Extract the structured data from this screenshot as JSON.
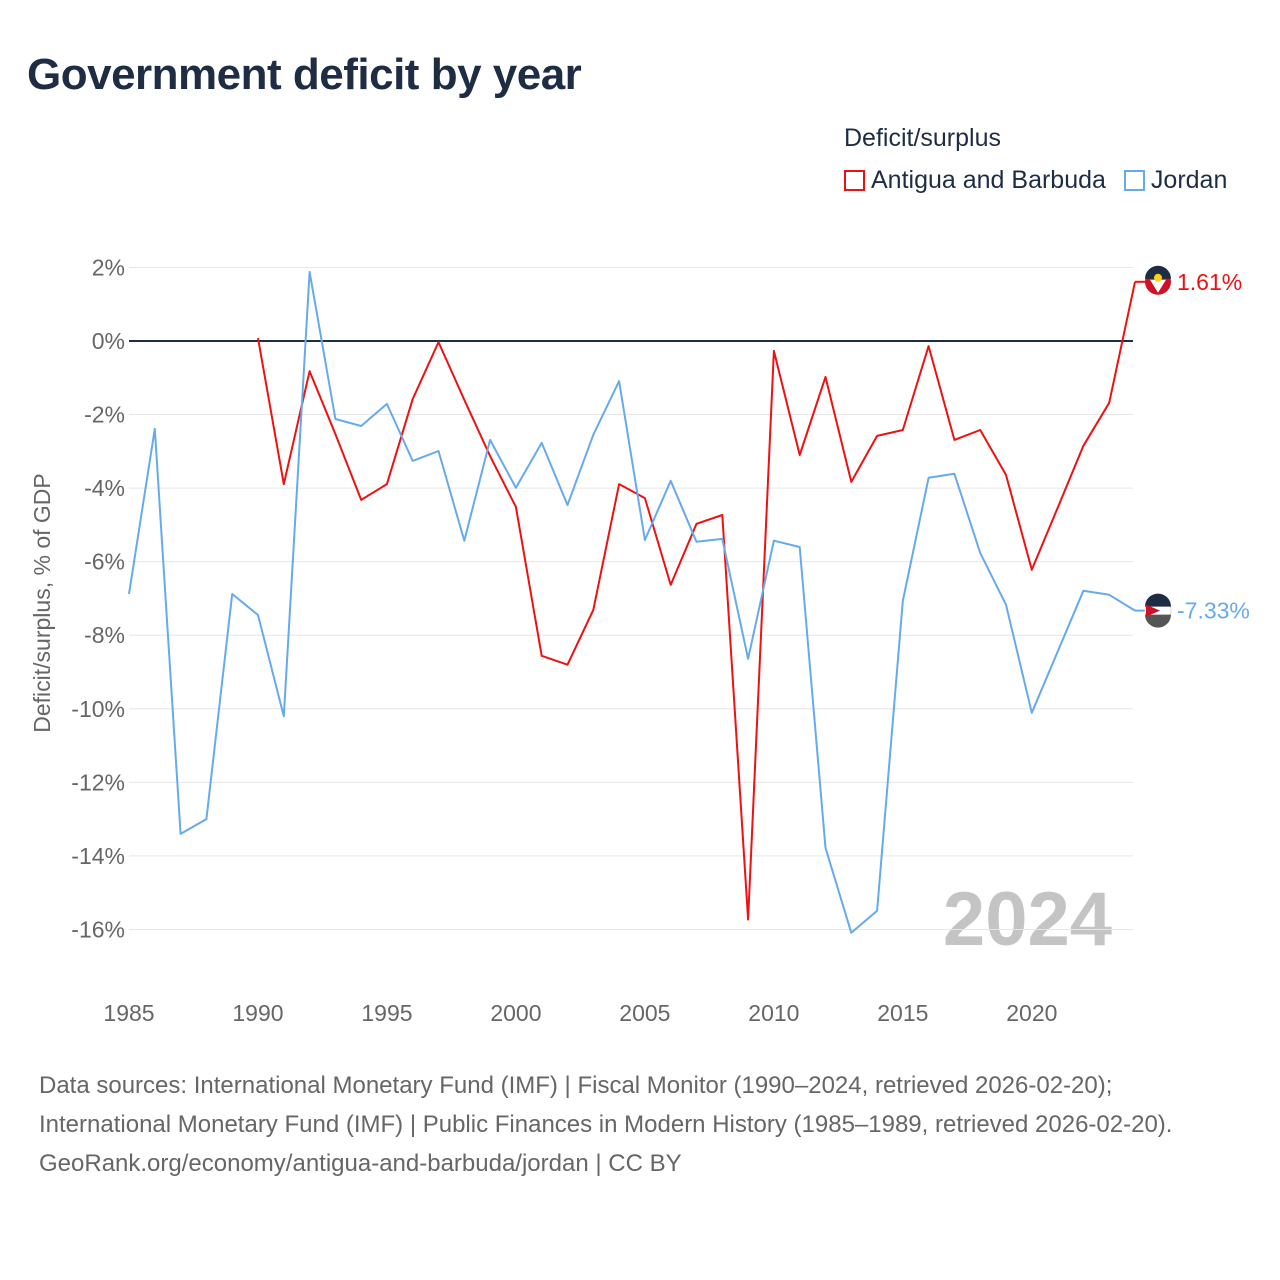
{
  "title": "Government deficit by year",
  "legend": {
    "title": "Deficit/surplus",
    "items": [
      {
        "label": "Antigua and Barbuda",
        "color": "#ee1111"
      },
      {
        "label": "Jordan",
        "color": "#66aaee"
      }
    ]
  },
  "footer": {
    "sources": "Data sources: International Monetary Fund (IMF) | Fiscal Monitor (1990–2024, retrieved 2026-02-20); International Monetary Fund (IMF) | Public Finances in Modern History (1985–1989, retrieved 2026-02-20).",
    "credit": "GeoRank.org/economy/antigua-and-barbuda/jordan | CC BY"
  },
  "chart_data": {
    "type": "line",
    "title": "Government deficit by year",
    "xlabel": "",
    "ylabel": "Deficit/surplus, % of GDP",
    "xlim": [
      1985,
      2024
    ],
    "ylim": [
      -16,
      2
    ],
    "x_ticks": [
      "1985",
      "1990",
      "1995",
      "2000",
      "2005",
      "2010",
      "2015",
      "2020"
    ],
    "y_ticks": [
      "2%",
      "0%",
      "-2%",
      "-4%",
      "-6%",
      "-8%",
      "-10%",
      "-12%",
      "-14%",
      "-16%"
    ],
    "y_tick_values": [
      2,
      0,
      -2,
      -4,
      -6,
      -8,
      -10,
      -12,
      -14,
      -16
    ],
    "year_watermark": "2024",
    "grid": true,
    "legend_position": "top-right",
    "series": [
      {
        "name": "Antigua and Barbuda",
        "color": "#ee1111",
        "end_label": "1.61%",
        "x": [
          1990,
          1991,
          1992,
          1993,
          1994,
          1995,
          1996,
          1997,
          1998,
          1999,
          2000,
          2001,
          2002,
          2003,
          2004,
          2005,
          2006,
          2007,
          2008,
          2009,
          2010,
          2011,
          2012,
          2013,
          2014,
          2015,
          2016,
          2017,
          2018,
          2019,
          2020,
          2021,
          2022,
          2023,
          2024
        ],
        "values": [
          0.08,
          -3.89,
          -0.82,
          -2.53,
          -4.32,
          -3.89,
          -1.58,
          -0.03,
          -1.6,
          -3.13,
          -4.51,
          -8.56,
          -8.8,
          -7.31,
          -3.89,
          -4.27,
          -6.63,
          -4.97,
          -4.73,
          -15.73,
          -0.27,
          -3.1,
          -0.98,
          -3.83,
          -2.58,
          -2.42,
          -0.14,
          -2.69,
          -2.42,
          -3.64,
          -6.22,
          -4.54,
          -2.85,
          -1.68,
          1.61
        ]
      },
      {
        "name": "Jordan",
        "color": "#66aaee",
        "end_label": "-7.33%",
        "x": [
          1985,
          1986,
          1987,
          1988,
          1989,
          1990,
          1991,
          1992,
          1993,
          1994,
          1995,
          1996,
          1997,
          1998,
          1999,
          2000,
          2001,
          2002,
          2003,
          2004,
          2005,
          2006,
          2007,
          2008,
          2009,
          2010,
          2011,
          2012,
          2013,
          2014,
          2015,
          2016,
          2017,
          2018,
          2019,
          2020,
          2021,
          2022,
          2023,
          2024
        ],
        "values": [
          -6.88,
          -2.39,
          -13.4,
          -13.0,
          -6.88,
          -7.45,
          -10.2,
          1.88,
          -2.12,
          -2.31,
          -1.71,
          -3.26,
          -2.99,
          -5.43,
          -2.69,
          -3.99,
          -2.77,
          -4.46,
          -2.55,
          -1.09,
          -5.41,
          -3.8,
          -5.46,
          -5.38,
          -8.64,
          -5.43,
          -5.6,
          -13.78,
          -16.09,
          -15.49,
          -7.07,
          -3.72,
          -3.61,
          -5.76,
          -7.17,
          -10.11,
          -8.45,
          -6.79,
          -6.9,
          -7.33
        ]
      }
    ]
  }
}
